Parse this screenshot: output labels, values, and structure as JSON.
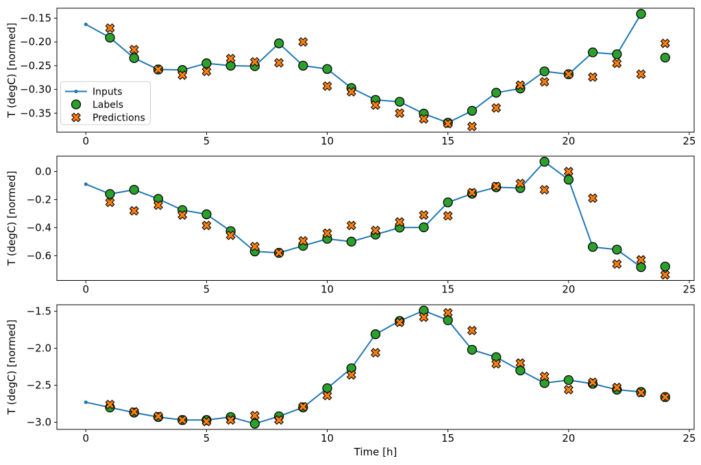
{
  "figure": {
    "xlabel": "Time [h]",
    "ylabel": "T (degC) [normed]",
    "colors": {
      "inputs": "#1f77b4",
      "labels": "#2ca02c",
      "predictions": "#ff7f0e",
      "marker_edge": "#000000",
      "spine": "#000000",
      "legend_border": "#cccccc",
      "background": "#ffffff"
    },
    "legend": [
      {
        "label": "Inputs",
        "marker": "line-dot"
      },
      {
        "label": "Labels",
        "marker": "circle"
      },
      {
        "label": "Predictions",
        "marker": "x"
      }
    ]
  },
  "chart_data": [
    {
      "type": "line",
      "ylabel": "T (degC) [normed]",
      "xlim": [
        -1.2,
        25.2
      ],
      "ylim": [
        -0.39,
        -0.129
      ],
      "xticks": [
        0,
        5,
        10,
        15,
        20,
        25
      ],
      "xtick_labels": [
        "0",
        "5",
        "10",
        "15",
        "20",
        "25"
      ],
      "yticks": [
        -0.15,
        -0.2,
        -0.25,
        -0.3,
        -0.35
      ],
      "ytick_labels": [
        "−0.15",
        "−0.20",
        "−0.25",
        "−0.30",
        "−0.35"
      ],
      "legend": true,
      "series": [
        {
          "name": "Inputs",
          "marker": "line-dot",
          "x": [
            0,
            1,
            2,
            3,
            4,
            5,
            6,
            7,
            8,
            9,
            10,
            11,
            12,
            13,
            14,
            15,
            16,
            17,
            18,
            19,
            20,
            21,
            22,
            23
          ],
          "values": [
            -0.163,
            -0.191,
            -0.234,
            -0.258,
            -0.259,
            -0.245,
            -0.25,
            -0.251,
            -0.203,
            -0.25,
            -0.257,
            -0.297,
            -0.322,
            -0.326,
            -0.351,
            -0.37,
            -0.345,
            -0.307,
            -0.298,
            -0.262,
            -0.268,
            -0.222,
            -0.226,
            -0.141
          ]
        },
        {
          "name": "Labels",
          "marker": "circle",
          "x": [
            1,
            2,
            3,
            4,
            5,
            6,
            7,
            8,
            9,
            10,
            11,
            12,
            13,
            14,
            15,
            16,
            17,
            18,
            19,
            20,
            21,
            22,
            23,
            24
          ],
          "values": [
            -0.191,
            -0.234,
            -0.258,
            -0.259,
            -0.245,
            -0.25,
            -0.251,
            -0.203,
            -0.25,
            -0.257,
            -0.297,
            -0.322,
            -0.326,
            -0.351,
            -0.37,
            -0.345,
            -0.307,
            -0.298,
            -0.262,
            -0.268,
            -0.222,
            -0.226,
            -0.141,
            -0.233
          ]
        },
        {
          "name": "Predictions",
          "marker": "x",
          "x": [
            1,
            2,
            3,
            4,
            5,
            6,
            7,
            8,
            9,
            10,
            11,
            12,
            13,
            14,
            15,
            16,
            17,
            18,
            19,
            20,
            21,
            22,
            23,
            24
          ],
          "values": [
            -0.171,
            -0.216,
            -0.258,
            -0.27,
            -0.262,
            -0.235,
            -0.242,
            -0.244,
            -0.2,
            -0.293,
            -0.305,
            -0.333,
            -0.35,
            -0.362,
            -0.372,
            -0.378,
            -0.339,
            -0.291,
            -0.284,
            -0.268,
            -0.274,
            -0.245,
            -0.268,
            -0.203
          ]
        }
      ]
    },
    {
      "type": "line",
      "ylabel": "T (degC) [normed]",
      "xlim": [
        -1.2,
        25.2
      ],
      "ylim": [
        -0.777,
        0.11
      ],
      "xticks": [
        0,
        5,
        10,
        15,
        20,
        25
      ],
      "xtick_labels": [
        "0",
        "5",
        "10",
        "15",
        "20",
        "25"
      ],
      "yticks": [
        0.0,
        -0.2,
        -0.4,
        -0.6
      ],
      "ytick_labels": [
        "0.0",
        "−0.2",
        "−0.4",
        "−0.6"
      ],
      "legend": false,
      "series": [
        {
          "name": "Inputs",
          "marker": "line-dot",
          "x": [
            0,
            1,
            2,
            3,
            4,
            5,
            6,
            7,
            8,
            9,
            10,
            11,
            12,
            13,
            14,
            15,
            16,
            17,
            18,
            19,
            20,
            21,
            22,
            23
          ],
          "values": [
            -0.09,
            -0.16,
            -0.13,
            -0.195,
            -0.275,
            -0.305,
            -0.425,
            -0.57,
            -0.58,
            -0.53,
            -0.48,
            -0.5,
            -0.45,
            -0.4,
            -0.398,
            -0.22,
            -0.158,
            -0.112,
            -0.118,
            0.07,
            -0.058,
            -0.538,
            -0.557,
            -0.682
          ]
        },
        {
          "name": "Labels",
          "marker": "circle",
          "x": [
            1,
            2,
            3,
            4,
            5,
            6,
            7,
            8,
            9,
            10,
            11,
            12,
            13,
            14,
            15,
            16,
            17,
            18,
            19,
            20,
            21,
            22,
            23,
            24
          ],
          "values": [
            -0.16,
            -0.13,
            -0.195,
            -0.275,
            -0.305,
            -0.425,
            -0.57,
            -0.58,
            -0.53,
            -0.48,
            -0.5,
            -0.45,
            -0.4,
            -0.398,
            -0.22,
            -0.158,
            -0.112,
            -0.118,
            0.07,
            -0.058,
            -0.538,
            -0.557,
            -0.682,
            -0.678
          ]
        },
        {
          "name": "Predictions",
          "marker": "x",
          "x": [
            1,
            2,
            3,
            4,
            5,
            6,
            7,
            8,
            9,
            10,
            11,
            12,
            13,
            14,
            15,
            16,
            17,
            18,
            19,
            20,
            21,
            22,
            23,
            24
          ],
          "values": [
            -0.22,
            -0.28,
            -0.24,
            -0.31,
            -0.385,
            -0.455,
            -0.535,
            -0.58,
            -0.495,
            -0.44,
            -0.385,
            -0.42,
            -0.36,
            -0.31,
            -0.316,
            -0.15,
            -0.105,
            -0.085,
            -0.13,
            0.0,
            -0.19,
            -0.66,
            -0.63,
            -0.737
          ]
        }
      ]
    },
    {
      "type": "line",
      "ylabel": "T (degC) [normed]",
      "xlabel": "Time [h]",
      "xlim": [
        -1.2,
        25.2
      ],
      "ylim": [
        -3.097,
        -1.411
      ],
      "xticks": [
        0,
        5,
        10,
        15,
        20,
        25
      ],
      "xtick_labels": [
        "0",
        "5",
        "10",
        "15",
        "20",
        "25"
      ],
      "yticks": [
        -1.5,
        -2.0,
        -2.5,
        -3.0
      ],
      "ytick_labels": [
        "−1.5",
        "−2.0",
        "−2.5",
        "−3.0"
      ],
      "legend": false,
      "series": [
        {
          "name": "Inputs",
          "marker": "line-dot",
          "x": [
            0,
            1,
            2,
            3,
            4,
            5,
            6,
            7,
            8,
            9,
            10,
            11,
            12,
            13,
            14,
            15,
            16,
            17,
            18,
            19,
            20,
            21,
            22,
            23
          ],
          "values": [
            -2.73,
            -2.8,
            -2.87,
            -2.93,
            -2.97,
            -2.97,
            -2.93,
            -3.02,
            -2.92,
            -2.8,
            -2.54,
            -2.27,
            -1.81,
            -1.63,
            -1.49,
            -1.62,
            -2.02,
            -2.12,
            -2.3,
            -2.47,
            -2.43,
            -2.48,
            -2.56,
            -2.59
          ]
        },
        {
          "name": "Labels",
          "marker": "circle",
          "x": [
            1,
            2,
            3,
            4,
            5,
            6,
            7,
            8,
            9,
            10,
            11,
            12,
            13,
            14,
            15,
            16,
            17,
            18,
            19,
            20,
            21,
            22,
            23,
            24
          ],
          "values": [
            -2.8,
            -2.87,
            -2.93,
            -2.97,
            -2.97,
            -2.93,
            -3.02,
            -2.92,
            -2.8,
            -2.54,
            -2.27,
            -1.81,
            -1.63,
            -1.49,
            -1.62,
            -2.02,
            -2.12,
            -2.3,
            -2.47,
            -2.43,
            -2.48,
            -2.56,
            -2.59,
            -2.66
          ]
        },
        {
          "name": "Predictions",
          "marker": "x",
          "x": [
            1,
            2,
            3,
            4,
            5,
            6,
            7,
            8,
            9,
            10,
            11,
            12,
            13,
            14,
            15,
            16,
            17,
            18,
            19,
            20,
            21,
            22,
            23,
            24
          ],
          "values": [
            -2.76,
            -2.86,
            -2.92,
            -2.97,
            -2.99,
            -2.97,
            -2.91,
            -2.97,
            -2.79,
            -2.64,
            -2.36,
            -2.06,
            -1.65,
            -1.58,
            -1.52,
            -1.76,
            -2.21,
            -2.2,
            -2.38,
            -2.56,
            -2.46,
            -2.53,
            -2.6,
            -2.66
          ]
        }
      ]
    }
  ]
}
